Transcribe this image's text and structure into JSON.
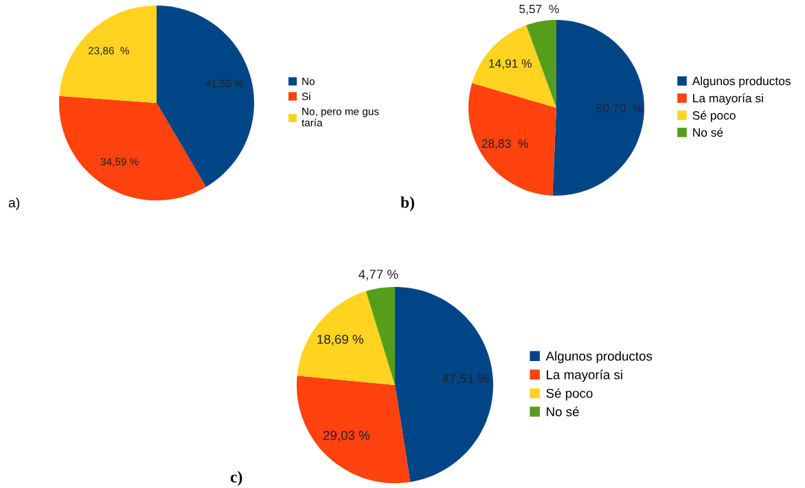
{
  "chart_data": [
    {
      "type": "pie",
      "categories": [
        "No",
        "Si",
        "No, pero me gus\ntaría"
      ],
      "values": [
        41.55,
        34.59,
        23.86
      ],
      "colors": [
        "#004586",
        "#ff420e",
        "#ffd320"
      ],
      "value_labels": [
        "41,55 %",
        "34,59 %",
        "23,86  %"
      ],
      "legend": "right",
      "annotations": [
        "a)"
      ]
    },
    {
      "type": "pie",
      "categories": [
        "Algunos productos",
        "La mayoría si",
        "Sé poco",
        "No sé"
      ],
      "values": [
        50.7,
        28.83,
        14.91,
        5.57
      ],
      "colors": [
        "#004586",
        "#ff420e",
        "#ffd320",
        "#579d1c"
      ],
      "value_labels": [
        "50,70  %",
        "28,83  %",
        "14,91 %",
        "5,57  %"
      ],
      "legend": "right",
      "annotations": [
        "b)"
      ]
    },
    {
      "type": "pie",
      "categories": [
        "Algunos productos",
        "La mayoría si",
        "Sé poco",
        "No sé"
      ],
      "values": [
        47.51,
        29.03,
        18.69,
        4.77
      ],
      "colors": [
        "#004586",
        "#ff420e",
        "#ffd320",
        "#579d1c"
      ],
      "value_labels": [
        "47,51 %",
        "29,03 %",
        "18,69 %",
        "4,77 %"
      ],
      "legend": "right",
      "annotations": [
        "c)"
      ]
    }
  ]
}
